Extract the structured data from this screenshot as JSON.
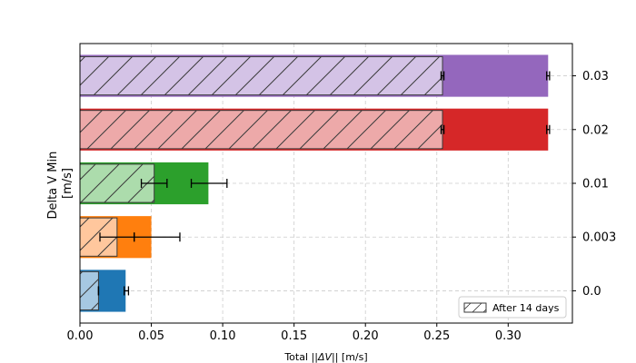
{
  "chart_data": {
    "type": "bar",
    "orientation": "horizontal",
    "xlabel": "Total ||ΔV|| [m/s]",
    "ylabel_lines": [
      "Delta V Min",
      "[m/s]"
    ],
    "y_tick_side": "right",
    "xlim": [
      0,
      0.345
    ],
    "x_ticks": [
      "0.00",
      "0.05",
      "0.10",
      "0.15",
      "0.20",
      "0.25",
      "0.30"
    ],
    "categories": [
      "0.0",
      "0.003",
      "0.01",
      "0.02",
      "0.03"
    ],
    "grid": true,
    "legend": {
      "label": "After 14 days",
      "placement": "bottom-right"
    },
    "series": [
      {
        "values": [
          0.032,
          0.05,
          0.09,
          0.328,
          0.328
        ],
        "colors": [
          "#1f77b4",
          "#ff7f0e",
          "#2ca02c",
          "#d62728",
          "#9467bd"
        ]
      },
      {
        "name": "After 14 days",
        "values": [
          0.013,
          0.026,
          0.052,
          0.254,
          0.254
        ],
        "colors": [
          "#a6c8e2",
          "#ffc79d",
          "#acdcac",
          "#eda9a9",
          "#d4c3e6"
        ],
        "hatch": "/"
      }
    ],
    "error_bars": [
      {
        "category": "0.0",
        "center": 0.032,
        "low": 0.031,
        "high": 0.034
      },
      {
        "category": "0.0",
        "center": 0.013,
        "low": 0.013,
        "high": 0.013
      },
      {
        "category": "0.003",
        "center": 0.031,
        "low": 0.014,
        "high": 0.07
      },
      {
        "category": "0.003",
        "center": 0.038,
        "low": 0.038,
        "high": 0.038
      },
      {
        "category": "0.01",
        "center": 0.061,
        "low": 0.043,
        "high": 0.061
      },
      {
        "category": "0.01",
        "center": 0.078,
        "low": 0.078,
        "high": 0.103
      },
      {
        "category": "0.02",
        "center": 0.254,
        "low": 0.253,
        "high": 0.255
      },
      {
        "category": "0.02",
        "center": 0.328,
        "low": 0.327,
        "high": 0.329
      },
      {
        "category": "0.03",
        "center": 0.254,
        "low": 0.253,
        "high": 0.255
      },
      {
        "category": "0.03",
        "center": 0.328,
        "low": 0.327,
        "high": 0.329
      }
    ]
  }
}
